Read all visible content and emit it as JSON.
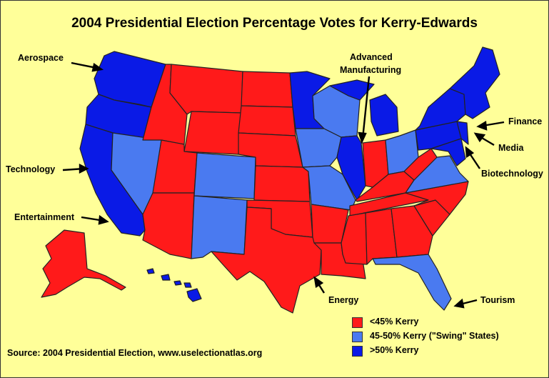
{
  "title": "2004 Presidential Election Percentage Votes for Kerry-Edwards",
  "colors": {
    "background": "#ffff99",
    "low": "#ff1a1a",
    "swing": "#4a7af0",
    "high": "#0a1ae6",
    "border": "#222222"
  },
  "callouts": {
    "aerospace": "Aerospace",
    "advanced_manufacturing_line1": "Advanced",
    "advanced_manufacturing_line2": "Manufacturing",
    "finance": "Finance",
    "media": "Media",
    "biotechnology": "Biotechnology",
    "technology": "Technology",
    "entertainment": "Entertainment",
    "energy": "Energy",
    "tourism": "Tourism"
  },
  "legend": [
    {
      "label": "<45% Kerry",
      "color": "#ff1a1a"
    },
    {
      "label": "45-50% Kerry (\"Swing\" States)",
      "color": "#4a7af0"
    },
    {
      "label": ">50% Kerry",
      "color": "#0a1ae6"
    }
  ],
  "source": "Source: 2004 Presidential Election, www.uselectionatlas.org"
}
